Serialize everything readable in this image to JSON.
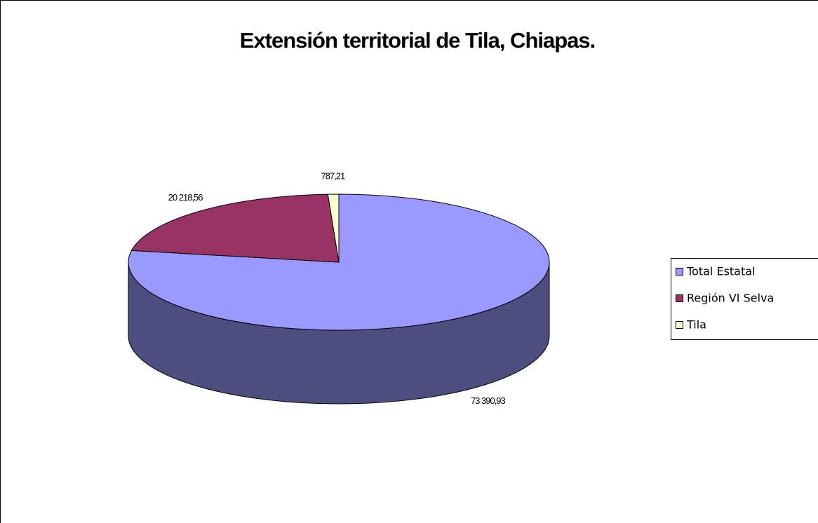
{
  "chart_data": {
    "type": "pie",
    "title": "Extensión territorial de Tila, Chiapas.",
    "categories": [
      "Total Estatal",
      "Región VI Selva",
      "Tila"
    ],
    "values": [
      73390.93,
      20218.56,
      787.21
    ],
    "value_labels": [
      "73 390,93",
      "20 218,56",
      "787,21"
    ],
    "colors": [
      "#9999ff",
      "#993366",
      "#ffffcc"
    ],
    "legend": "right"
  }
}
